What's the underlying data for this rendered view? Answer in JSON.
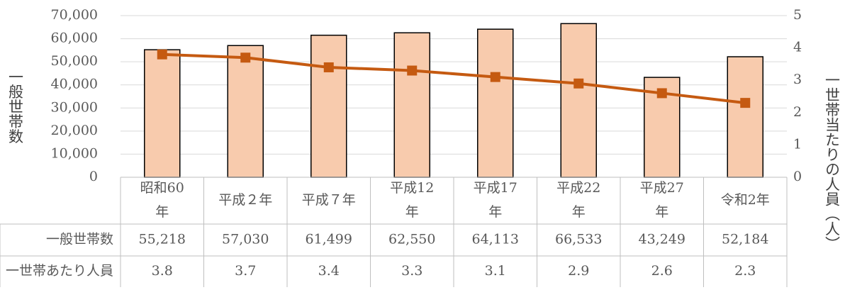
{
  "chart_data": {
    "type": "bar_line_table",
    "y_axis_label": "一般世帯数",
    "y2_axis_label": "一世帯当たりの人員（人）",
    "categories": [
      "昭和60年",
      "平成２年",
      "平成７年",
      "平成12年",
      "平成17年",
      "平成22年",
      "平成27年",
      "令和2年"
    ],
    "series": [
      {
        "name": "一般世帯数",
        "type": "bar",
        "color": "#f8cbad",
        "values": [
          55218,
          57030,
          61499,
          62550,
          64113,
          66533,
          43249,
          52184
        ],
        "value_labels": [
          "55,218",
          "57,030",
          "61,499",
          "62,550",
          "64,113",
          "66,533",
          "43,249",
          "52,184"
        ]
      },
      {
        "name": "一世帯あたり人員",
        "type": "line",
        "axis": "y2",
        "color": "#c55a11",
        "values": [
          3.8,
          3.7,
          3.4,
          3.3,
          3.1,
          2.9,
          2.6,
          2.3
        ]
      }
    ],
    "ylim": [
      0,
      70000
    ],
    "yticks": [
      0,
      {
        "value": 10000,
        "label": "10,000"
      },
      {
        "value": 20000,
        "label": "20,000"
      },
      {
        "value": 30000,
        "label": "30,000"
      },
      {
        "value": 40000,
        "label": "40,000"
      },
      {
        "value": 50000,
        "label": "50,000"
      },
      {
        "value": 60000,
        "label": "60,000"
      },
      {
        "value": 70000,
        "label": "70,000"
      }
    ],
    "y2lim": [
      0,
      5
    ],
    "y2ticks": [
      0,
      1,
      2,
      3,
      4,
      5
    ],
    "grid": true
  }
}
